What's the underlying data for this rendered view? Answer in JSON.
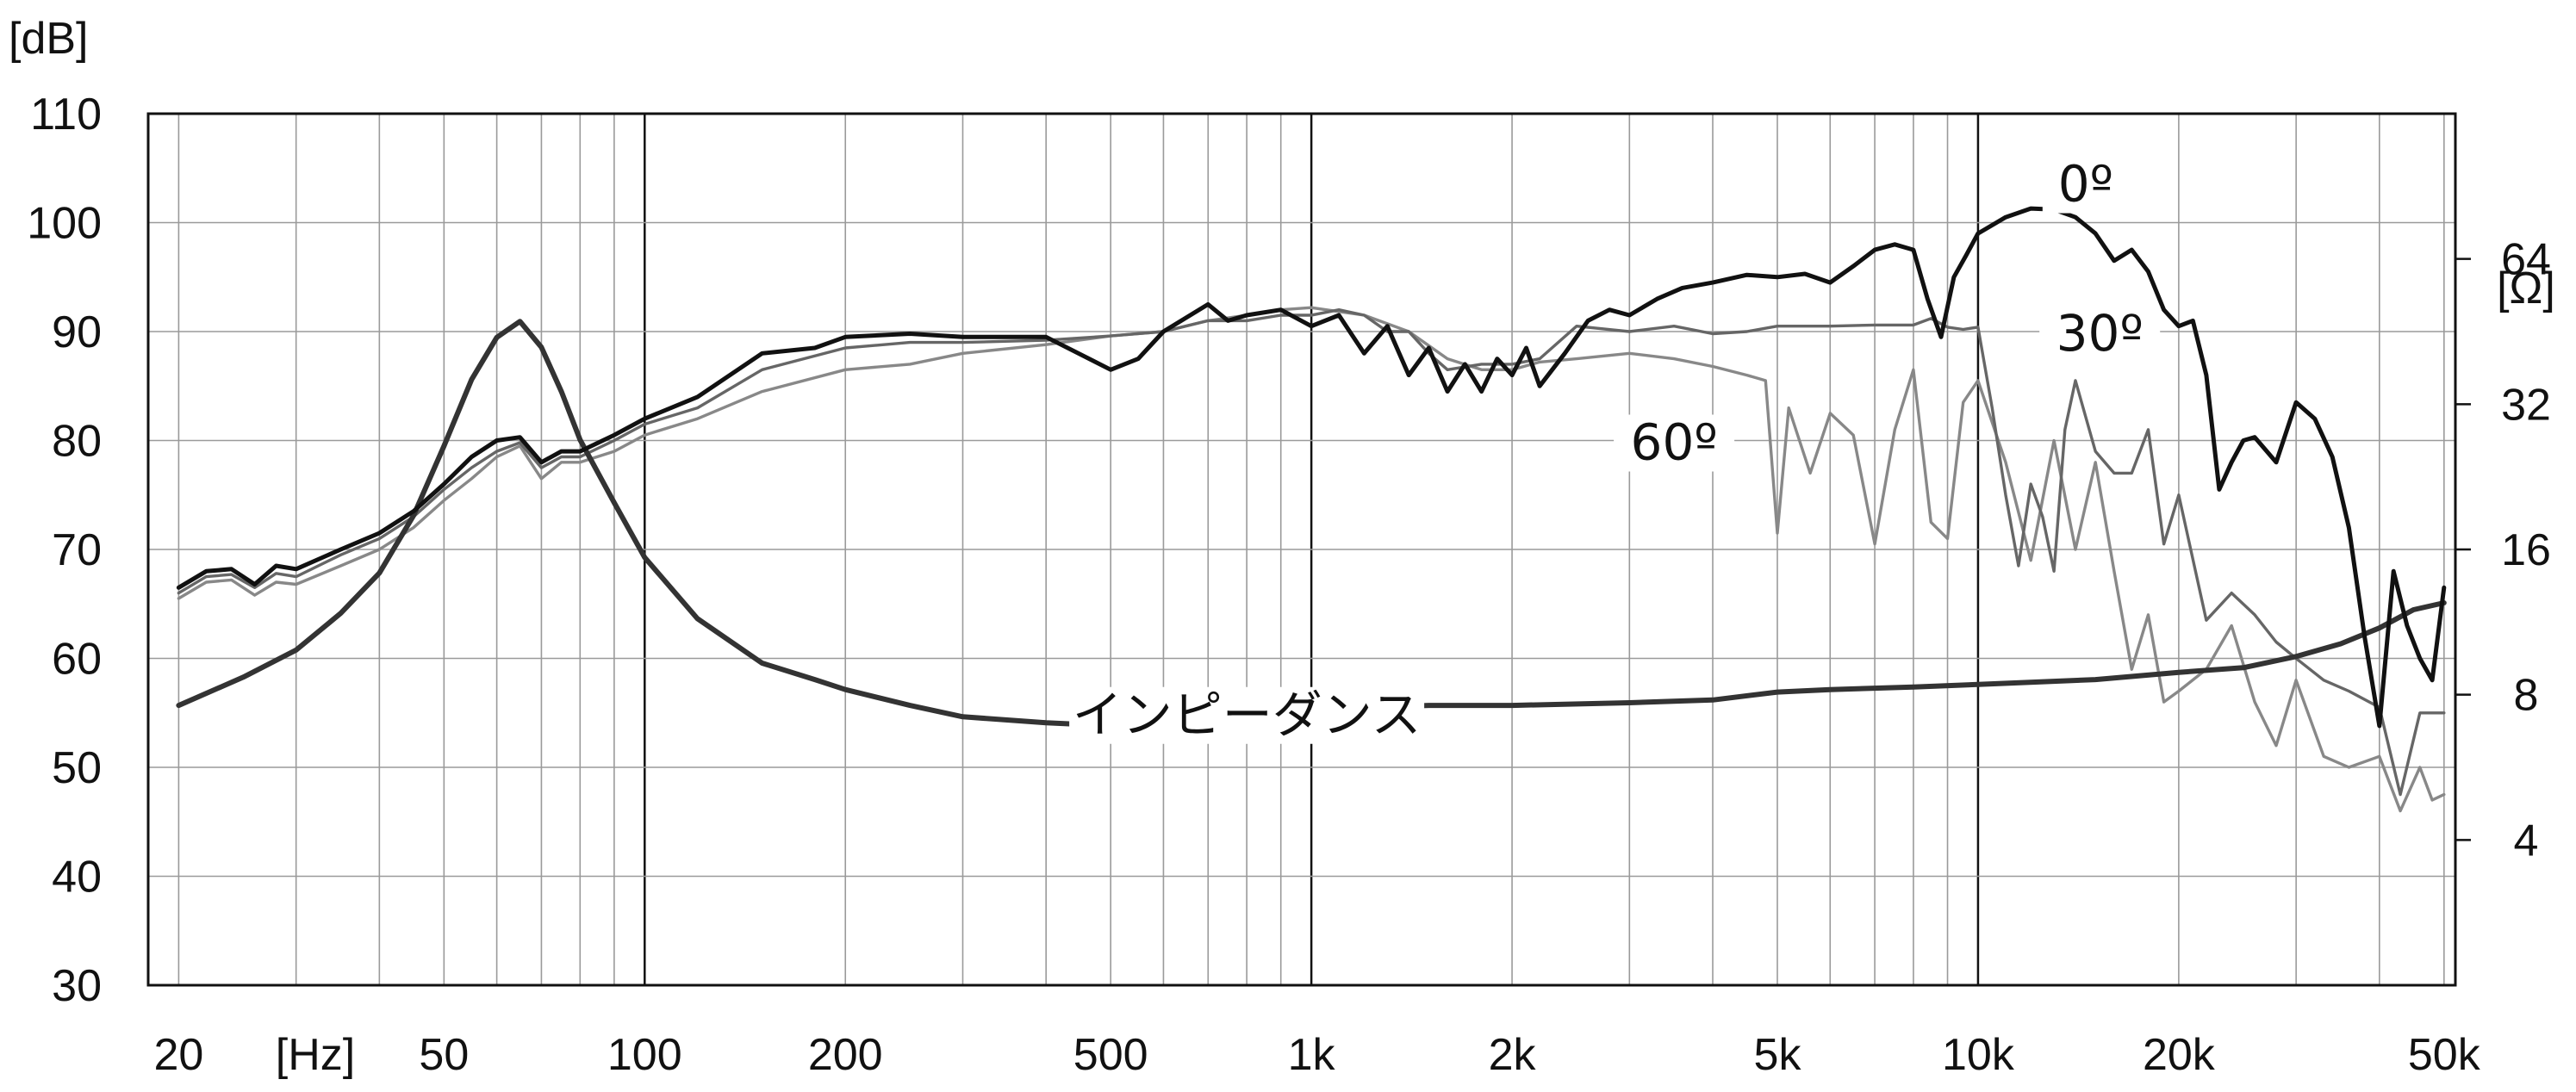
{
  "chart_data": {
    "type": "line",
    "y_unit_left": "[dB]",
    "y_unit_right": "[Ω]",
    "x_unit": "[Hz]",
    "x_scale": "log",
    "xlim": [
      18,
      52000
    ],
    "ylim_left": [
      30,
      110
    ],
    "ylim_right_log": [
      2,
      128
    ],
    "x_ticks": [
      {
        "value": 20,
        "label": "20"
      },
      {
        "value": 50,
        "label": "50"
      },
      {
        "value": 100,
        "label": "100"
      },
      {
        "value": 200,
        "label": "200"
      },
      {
        "value": 500,
        "label": "500"
      },
      {
        "value": 1000,
        "label": "1k"
      },
      {
        "value": 2000,
        "label": "2k"
      },
      {
        "value": 5000,
        "label": "5k"
      },
      {
        "value": 10000,
        "label": "10k"
      },
      {
        "value": 20000,
        "label": "20k"
      },
      {
        "value": 50000,
        "label": "50k"
      }
    ],
    "y_ticks_left": [
      30,
      40,
      50,
      60,
      70,
      80,
      90,
      100,
      110
    ],
    "y_ticks_right": [
      {
        "value": 4,
        "label": "4"
      },
      {
        "value": 8,
        "label": "8"
      },
      {
        "value": 16,
        "label": "16"
      },
      {
        "value": 32,
        "label": "32"
      },
      {
        "value": 64,
        "label": "64"
      }
    ],
    "grid": true,
    "annotations": [
      {
        "text": "0º",
        "series": "0º"
      },
      {
        "text": "30º",
        "series": "30º"
      },
      {
        "text": "60º",
        "series": "60º"
      },
      {
        "text": "インピーダンス",
        "series": "インピーダンス"
      }
    ],
    "series": [
      {
        "name": "0º",
        "axis": "left",
        "color": "#111111",
        "x": [
          20,
          22,
          24,
          26,
          28,
          30,
          35,
          40,
          45,
          50,
          55,
          60,
          65,
          70,
          75,
          80,
          90,
          100,
          120,
          150,
          180,
          200,
          250,
          300,
          400,
          500,
          550,
          600,
          700,
          750,
          800,
          900,
          1000,
          1100,
          1200,
          1300,
          1400,
          1500,
          1600,
          1700,
          1800,
          1900,
          2000,
          2100,
          2200,
          2400,
          2600,
          2800,
          3000,
          3300,
          3600,
          4000,
          4500,
          5000,
          5500,
          6000,
          6500,
          7000,
          7500,
          8000,
          8400,
          8800,
          9200,
          9600,
          10000,
          11000,
          12000,
          13000,
          14000,
          15000,
          16000,
          17000,
          18000,
          19000,
          20000,
          21000,
          22000,
          23000,
          24000,
          25000,
          26000,
          28000,
          30000,
          32000,
          34000,
          36000,
          38000,
          40000,
          42000,
          44000,
          46000,
          48000,
          50000
        ],
        "y": [
          66.5,
          68,
          68.2,
          66.8,
          68.5,
          68.2,
          70,
          71.5,
          73.5,
          76,
          78.5,
          80,
          80.3,
          78,
          79,
          79,
          80.5,
          82,
          84,
          88,
          88.5,
          89.5,
          89.8,
          89.5,
          89.5,
          86.5,
          87.5,
          90,
          92.5,
          91,
          91.5,
          92,
          90.5,
          91.5,
          88,
          90.5,
          86,
          88.5,
          84.5,
          87,
          84.5,
          87.5,
          86,
          88.5,
          85,
          88,
          91,
          92,
          91.5,
          93,
          94,
          94.5,
          95.2,
          95,
          95.3,
          94.5,
          96,
          97.5,
          98,
          97.5,
          93,
          89.5,
          95,
          97,
          99,
          100.5,
          101.3,
          101.2,
          100.5,
          99,
          96.5,
          97.5,
          95.5,
          92,
          90.5,
          91,
          86,
          75.5,
          78,
          80,
          80.3,
          78,
          83.5,
          82,
          78.5,
          72,
          62,
          53.8,
          68,
          63,
          60,
          58,
          66.5
        ]
      },
      {
        "name": "30º",
        "axis": "left",
        "color": "#666666",
        "x": [
          20,
          22,
          24,
          26,
          28,
          30,
          35,
          40,
          45,
          50,
          55,
          60,
          65,
          70,
          75,
          80,
          90,
          100,
          120,
          150,
          200,
          250,
          300,
          400,
          500,
          600,
          700,
          800,
          900,
          1000,
          1100,
          1200,
          1300,
          1400,
          1500,
          1600,
          1800,
          2000,
          2200,
          2500,
          3000,
          3500,
          4000,
          4500,
          5000,
          6000,
          7000,
          8000,
          8500,
          9000,
          9500,
          10000,
          10500,
          11000,
          11500,
          12000,
          12500,
          13000,
          13500,
          14000,
          15000,
          16000,
          17000,
          18000,
          19000,
          20000,
          22000,
          24000,
          26000,
          28000,
          30000,
          33000,
          36000,
          40000,
          43000,
          46000,
          48000,
          50000
        ],
        "y": [
          66,
          67.5,
          67.7,
          66.5,
          67.8,
          67.5,
          69.5,
          71,
          73,
          75.5,
          77.5,
          79,
          79.8,
          77.5,
          78.5,
          78.5,
          80,
          81.5,
          83,
          86.5,
          88.5,
          89,
          89,
          89.2,
          89.6,
          90,
          91,
          91,
          91.5,
          91.5,
          92,
          91.5,
          90,
          90,
          88,
          86.5,
          87,
          87,
          87.5,
          90.5,
          90,
          90.5,
          89.8,
          90,
          90.5,
          90.5,
          90.6,
          90.6,
          91.2,
          90.4,
          90.2,
          90.4,
          83,
          75,
          68.5,
          76,
          73,
          68,
          81,
          85.5,
          79,
          77,
          77,
          81,
          70.5,
          75,
          63.5,
          66,
          64,
          61.5,
          60,
          58,
          57,
          55.5,
          47.5,
          55,
          55,
          55
        ]
      },
      {
        "name": "60º",
        "axis": "left",
        "color": "#888888",
        "x": [
          20,
          22,
          24,
          26,
          28,
          30,
          35,
          40,
          45,
          50,
          55,
          60,
          65,
          70,
          75,
          80,
          90,
          100,
          120,
          150,
          200,
          250,
          300,
          400,
          500,
          600,
          700,
          800,
          900,
          1000,
          1200,
          1400,
          1600,
          1800,
          2000,
          2200,
          2500,
          3000,
          3500,
          4000,
          4500,
          4800,
          5000,
          5200,
          5600,
          6000,
          6500,
          7000,
          7500,
          8000,
          8500,
          9000,
          9500,
          10000,
          11000,
          12000,
          13000,
          14000,
          15000,
          16000,
          17000,
          18000,
          19000,
          20000,
          22000,
          24000,
          26000,
          28000,
          30000,
          33000,
          36000,
          40000,
          43000,
          46000,
          48000,
          50000
        ],
        "y": [
          65.5,
          67,
          67.2,
          65.8,
          67,
          66.8,
          68.5,
          70,
          72,
          74.5,
          76.5,
          78.5,
          79.5,
          76.5,
          78,
          78,
          79,
          80.5,
          82,
          84.5,
          86.5,
          87,
          88,
          88.8,
          89.6,
          90,
          91,
          91.5,
          92,
          92.2,
          91.5,
          90,
          87.5,
          86.5,
          86.5,
          87.2,
          87.5,
          88,
          87.5,
          86.8,
          86,
          85.5,
          71.5,
          83,
          77,
          82.5,
          80.5,
          70.5,
          81,
          86.5,
          72.5,
          71,
          83.5,
          85.5,
          78,
          69,
          80,
          70,
          78,
          68,
          59,
          64,
          56,
          57,
          59,
          63,
          56,
          52,
          58,
          51,
          50,
          51,
          46,
          50,
          47,
          47.5
        ]
      },
      {
        "name": "インピーダンス",
        "axis": "right",
        "color": "#333333",
        "x": [
          20,
          25,
          30,
          35,
          40,
          45,
          50,
          55,
          60,
          65,
          70,
          75,
          80,
          90,
          100,
          120,
          150,
          180,
          200,
          250,
          300,
          400,
          500,
          600,
          700,
          800,
          900,
          1000,
          1100,
          1200,
          1500,
          2000,
          3000,
          4000,
          5000,
          6000,
          8000,
          10000,
          15000,
          20000,
          25000,
          30000,
          35000,
          40000,
          45000,
          50000
        ],
        "y": [
          7.6,
          8.7,
          9.9,
          11.8,
          14.3,
          18.8,
          26.2,
          36,
          44,
          47.5,
          42,
          34,
          27,
          20,
          15.4,
          11.5,
          9.3,
          8.6,
          8.2,
          7.6,
          7.2,
          7.0,
          6.9,
          6.9,
          6.8,
          6.8,
          6.9,
          7.0,
          7.2,
          7.5,
          7.6,
          7.6,
          7.7,
          7.8,
          8.1,
          8.2,
          8.3,
          8.4,
          8.6,
          8.9,
          9.1,
          9.6,
          10.2,
          11.0,
          12.0,
          12.4
        ]
      }
    ]
  }
}
